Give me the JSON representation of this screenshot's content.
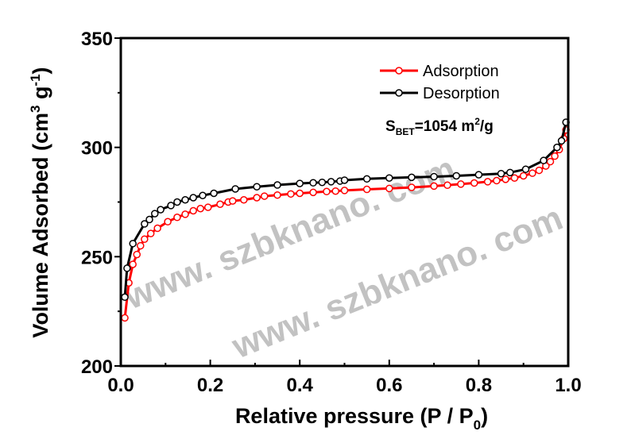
{
  "chart_data": {
    "type": "line",
    "xlabel": "Relative pressure (P / P0)",
    "xlabel_parts": {
      "main": "Relative pressure (P / P",
      "sub": "0",
      "end": ")"
    },
    "ylabel_parts": {
      "main": "Volume Adsorbed (cm",
      "sup1": "3",
      "mid": " g",
      "sup2": "-1",
      "end": ")"
    },
    "xlim": [
      0.0,
      1.0
    ],
    "ylim": [
      200,
      350
    ],
    "xticks": [
      "0.0",
      "0.2",
      "0.4",
      "0.6",
      "0.8",
      "1.0"
    ],
    "yticks": [
      "200",
      "250",
      "300",
      "350"
    ],
    "grid": false,
    "legend_placement": "top-right",
    "annotation": {
      "main": "S",
      "sub": "BET",
      "rest": "=1054 m",
      "sup": "2",
      "end": "/g"
    },
    "watermark": "www. szbknano. com",
    "series": [
      {
        "name": "Adsorption",
        "color": "#ff0000",
        "marker": "open-circle",
        "x": [
          0.009,
          0.018,
          0.027,
          0.036,
          0.044,
          0.053,
          0.067,
          0.082,
          0.105,
          0.126,
          0.144,
          0.162,
          0.178,
          0.195,
          0.222,
          0.24,
          0.25,
          0.275,
          0.304,
          0.321,
          0.35,
          0.38,
          0.4,
          0.43,
          0.46,
          0.48,
          0.5,
          0.55,
          0.6,
          0.65,
          0.7,
          0.73,
          0.76,
          0.79,
          0.82,
          0.84,
          0.86,
          0.88,
          0.9,
          0.92,
          0.935,
          0.95,
          0.96,
          0.97,
          0.98,
          0.99,
          0.995
        ],
        "y": [
          222,
          238,
          246.5,
          251,
          255,
          258,
          260.6,
          263,
          266,
          268,
          269.4,
          271,
          272,
          272.6,
          274,
          275,
          275.5,
          276,
          277,
          277.7,
          278.2,
          278.7,
          279,
          279.4,
          279.8,
          280,
          280.3,
          280.8,
          281.2,
          281.7,
          282.3,
          282.7,
          283.2,
          283.7,
          284.3,
          284.8,
          285.4,
          286,
          287,
          288.2,
          289.5,
          291.5,
          293.5,
          296,
          299,
          304,
          308
        ]
      },
      {
        "name": "Desorption",
        "color": "#000000",
        "marker": "open-circle",
        "x": [
          0.009,
          0.014,
          0.027,
          0.053,
          0.064,
          0.076,
          0.089,
          0.112,
          0.126,
          0.144,
          0.162,
          0.183,
          0.208,
          0.256,
          0.304,
          0.35,
          0.4,
          0.43,
          0.45,
          0.47,
          0.49,
          0.5,
          0.55,
          0.6,
          0.65,
          0.7,
          0.75,
          0.8,
          0.85,
          0.87,
          0.905,
          0.945,
          0.975,
          0.985,
          0.995
        ],
        "y": [
          231.5,
          244.7,
          256,
          265,
          267,
          269.7,
          271.5,
          273.4,
          275,
          276,
          277,
          278,
          279,
          281,
          282,
          282.8,
          283.5,
          283.8,
          284,
          284.3,
          284.6,
          285,
          285.6,
          286,
          286.3,
          286.6,
          287,
          287.5,
          288,
          288.5,
          290,
          294,
          300,
          303,
          311.5
        ]
      }
    ]
  }
}
